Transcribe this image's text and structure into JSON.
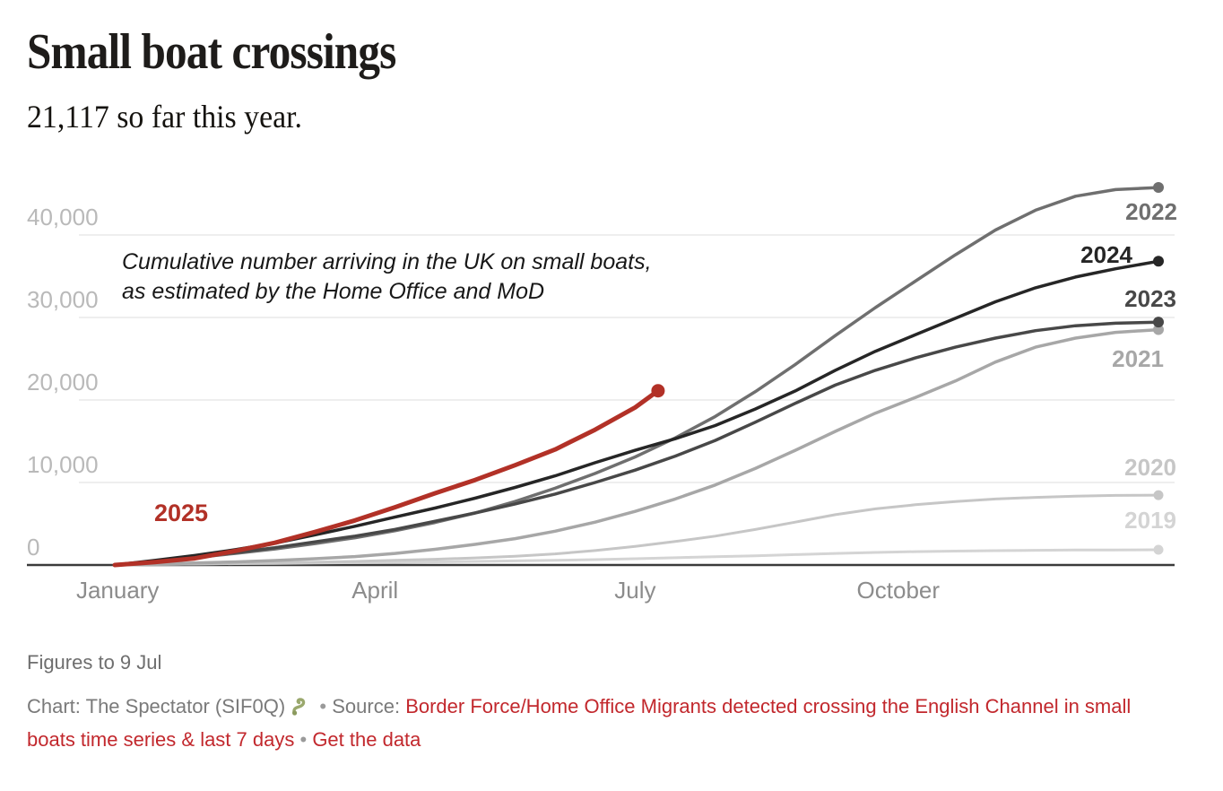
{
  "header": {
    "title": "Small boat crossings",
    "subtitle": "21,117 so far this year."
  },
  "chart_data": {
    "type": "line",
    "title": "Small boat crossings",
    "subtitle": "21,117 so far this year.",
    "annotation": "Cumulative number arriving in the UK on small boats, as estimated by the Home Office and MoD",
    "annotation_lines": [
      "Cumulative number arriving in the UK on small boats,",
      "as estimated by the Home Office and MoD"
    ],
    "xlabel": "",
    "ylabel": "",
    "ylim": [
      0,
      46000
    ],
    "grid": "horizontal",
    "legend_position": "end-of-line-labels",
    "x_ticks": [
      {
        "day": 1,
        "label": "January"
      },
      {
        "day": 91,
        "label": "April"
      },
      {
        "day": 182,
        "label": "July"
      },
      {
        "day": 274,
        "label": "October"
      }
    ],
    "y_ticks": [
      {
        "value": 0,
        "label": "0"
      },
      {
        "value": 10000,
        "label": "10,000"
      },
      {
        "value": 20000,
        "label": "20,000"
      },
      {
        "value": 30000,
        "label": "30,000"
      },
      {
        "value": 40000,
        "label": "40,000"
      }
    ],
    "series": [
      {
        "name": "2019",
        "color": "#d4d4d4",
        "days": [
          0,
          14,
          28,
          42,
          56,
          70,
          84,
          98,
          112,
          126,
          140,
          154,
          168,
          182,
          196,
          210,
          224,
          238,
          252,
          266,
          280,
          294,
          308,
          322,
          336,
          350,
          365
        ],
        "values": [
          0,
          80,
          120,
          160,
          200,
          240,
          280,
          330,
          380,
          440,
          500,
          560,
          650,
          760,
          880,
          1000,
          1120,
          1260,
          1400,
          1520,
          1620,
          1690,
          1740,
          1780,
          1810,
          1830,
          1843
        ]
      },
      {
        "name": "2020",
        "color": "#c6c6c6",
        "days": [
          0,
          14,
          28,
          42,
          56,
          70,
          84,
          98,
          112,
          126,
          140,
          154,
          168,
          182,
          196,
          210,
          224,
          238,
          252,
          266,
          280,
          294,
          308,
          322,
          336,
          350,
          365
        ],
        "values": [
          0,
          60,
          120,
          180,
          260,
          340,
          430,
          560,
          700,
          860,
          1060,
          1350,
          1750,
          2250,
          2850,
          3500,
          4300,
          5200,
          6100,
          6800,
          7300,
          7700,
          8000,
          8200,
          8350,
          8430,
          8466
        ]
      },
      {
        "name": "2021",
        "color": "#a7a7a7",
        "days": [
          0,
          14,
          28,
          42,
          56,
          70,
          84,
          98,
          112,
          126,
          140,
          154,
          168,
          182,
          196,
          210,
          224,
          238,
          252,
          266,
          280,
          294,
          308,
          322,
          336,
          350,
          365
        ],
        "values": [
          0,
          120,
          240,
          370,
          540,
          760,
          1020,
          1400,
          1900,
          2500,
          3200,
          4100,
          5200,
          6500,
          8000,
          9700,
          11700,
          13900,
          16200,
          18400,
          20300,
          22300,
          24600,
          26400,
          27500,
          28200,
          28526
        ]
      },
      {
        "name": "2022",
        "color": "#6f6f6f",
        "days": [
          0,
          14,
          28,
          42,
          56,
          70,
          84,
          98,
          112,
          126,
          140,
          154,
          168,
          182,
          196,
          210,
          224,
          238,
          252,
          266,
          280,
          294,
          308,
          322,
          336,
          350,
          365
        ],
        "values": [
          0,
          450,
          900,
          1400,
          1950,
          2600,
          3300,
          4150,
          5150,
          6300,
          7700,
          9300,
          11100,
          13100,
          15400,
          18000,
          21000,
          24300,
          27800,
          31200,
          34400,
          37600,
          40600,
          43000,
          44700,
          45500,
          45755
        ]
      },
      {
        "name": "2023",
        "color": "#484848",
        "days": [
          0,
          14,
          28,
          42,
          56,
          70,
          84,
          98,
          112,
          126,
          140,
          154,
          168,
          182,
          196,
          210,
          224,
          238,
          252,
          266,
          280,
          294,
          308,
          322,
          336,
          350,
          365
        ],
        "values": [
          0,
          450,
          950,
          1500,
          2100,
          2800,
          3500,
          4300,
          5300,
          6300,
          7400,
          8600,
          10000,
          11500,
          13200,
          15100,
          17300,
          19600,
          21800,
          23600,
          25100,
          26400,
          27500,
          28400,
          29000,
          29300,
          29437
        ]
      },
      {
        "name": "2024",
        "color": "#262626",
        "days": [
          0,
          14,
          28,
          42,
          56,
          70,
          84,
          98,
          112,
          126,
          140,
          154,
          168,
          182,
          196,
          210,
          224,
          238,
          252,
          266,
          280,
          294,
          308,
          322,
          336,
          350,
          365
        ],
        "values": [
          0,
          550,
          1150,
          1850,
          2650,
          3650,
          4700,
          5800,
          6900,
          8100,
          9400,
          10800,
          12400,
          13900,
          15300,
          16900,
          18900,
          21100,
          23600,
          25900,
          27900,
          29900,
          31900,
          33600,
          34900,
          35900,
          36816
        ]
      },
      {
        "name": "2025",
        "color": "#b23127",
        "highlight": true,
        "days": [
          0,
          14,
          28,
          42,
          56,
          70,
          84,
          98,
          112,
          126,
          140,
          154,
          168,
          182,
          190
        ],
        "values": [
          0,
          350,
          800,
          1700,
          2700,
          4000,
          5400,
          7000,
          8700,
          10300,
          12100,
          14000,
          16400,
          19100,
          21117
        ]
      }
    ]
  },
  "footer": {
    "note": "Figures to 9 Jul",
    "chart_label": "Chart: The Spectator (SIF0Q)",
    "emoji": "🐍",
    "separator": "•",
    "source_label": "Source:",
    "source_link": "Border Force/Home Office Migrants detected crossing the English Channel in small boats time series & last 7 days",
    "separator2": "•",
    "get_data_link": "Get the data"
  }
}
